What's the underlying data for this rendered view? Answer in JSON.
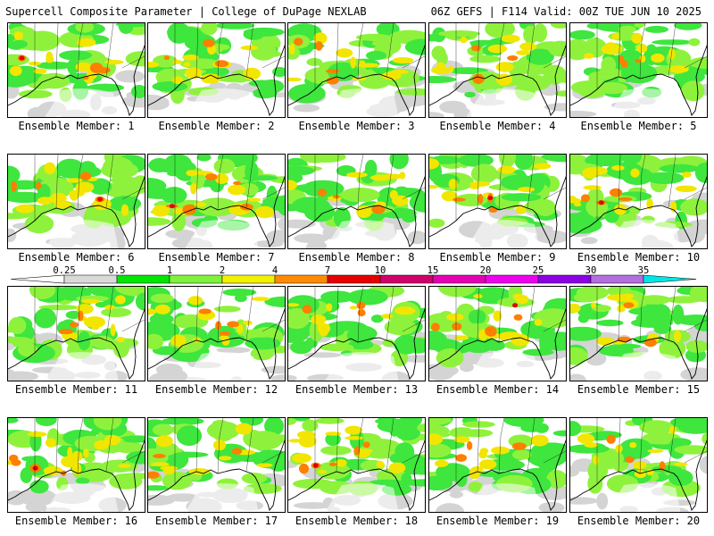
{
  "header": {
    "left_title": "Supercell Composite Parameter | College of DuPage NEXLAB",
    "right_title": "06Z GEFS | F114 Valid: 00Z TUE JUN 10 2025"
  },
  "members": [
    {
      "label": "Ensemble Member: 1",
      "coverage": 0.6,
      "intensity": 0.8
    },
    {
      "label": "Ensemble Member: 2",
      "coverage": 0.55,
      "intensity": 0.65
    },
    {
      "label": "Ensemble Member: 3",
      "coverage": 0.55,
      "intensity": 0.7
    },
    {
      "label": "Ensemble Member: 4",
      "coverage": 0.6,
      "intensity": 0.6
    },
    {
      "label": "Ensemble Member: 5",
      "coverage": 0.8,
      "intensity": 0.6
    },
    {
      "label": "Ensemble Member: 6",
      "coverage": 0.65,
      "intensity": 0.8
    },
    {
      "label": "Ensemble Member: 7",
      "coverage": 0.7,
      "intensity": 0.9
    },
    {
      "label": "Ensemble Member: 8",
      "coverage": 0.7,
      "intensity": 0.55
    },
    {
      "label": "Ensemble Member: 9",
      "coverage": 0.65,
      "intensity": 0.8
    },
    {
      "label": "Ensemble Member: 10",
      "coverage": 0.75,
      "intensity": 0.85
    },
    {
      "label": "Ensemble Member: 11",
      "coverage": 0.65,
      "intensity": 0.55
    },
    {
      "label": "Ensemble Member: 12",
      "coverage": 0.4,
      "intensity": 0.7
    },
    {
      "label": "Ensemble Member: 13",
      "coverage": 0.6,
      "intensity": 0.5
    },
    {
      "label": "Ensemble Member: 14",
      "coverage": 0.55,
      "intensity": 0.9
    },
    {
      "label": "Ensemble Member: 15",
      "coverage": 0.75,
      "intensity": 0.65
    },
    {
      "label": "Ensemble Member: 16",
      "coverage": 0.55,
      "intensity": 0.8
    },
    {
      "label": "Ensemble Member: 17",
      "coverage": 0.55,
      "intensity": 0.65
    },
    {
      "label": "Ensemble Member: 18",
      "coverage": 0.65,
      "intensity": 0.9
    },
    {
      "label": "Ensemble Member: 19",
      "coverage": 0.6,
      "intensity": 0.6
    },
    {
      "label": "Ensemble Member: 20",
      "coverage": 0.55,
      "intensity": 0.65
    }
  ],
  "colorbar": {
    "ticks": [
      "0.25",
      "0.5",
      "1",
      "2",
      "4",
      "7",
      "10",
      "15",
      "20",
      "25",
      "30",
      "35"
    ],
    "colors": [
      "#d9d9d9",
      "#00e600",
      "#7ef23c",
      "#f2f200",
      "#ff8c00",
      "#e60000",
      "#d1006b",
      "#e600b4",
      "#f000f0",
      "#8c00e6",
      "#b36ee0",
      "#00e6e6"
    ]
  },
  "map_colors": {
    "very_light": "#d4d4d4",
    "light": "#3ee63e",
    "mid": "#8ef23c",
    "high": "#f2e600",
    "higher": "#ff7f00",
    "extreme": "#e60000",
    "coast": "#000000"
  }
}
